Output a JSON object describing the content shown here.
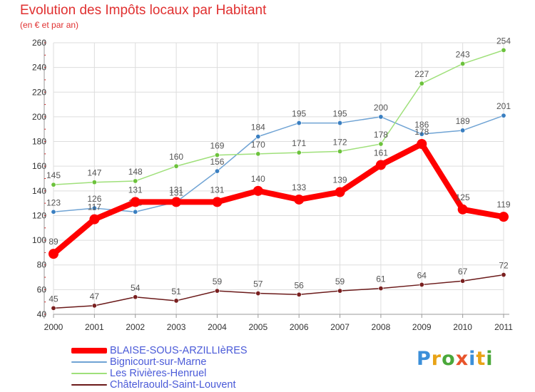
{
  "chart_data": {
    "type": "line",
    "title": "Evolution des Impôts locaux par Habitant",
    "subtitle": "(en € et par an)",
    "x": [
      "2000",
      "2001",
      "2002",
      "2003",
      "2004",
      "2005",
      "2006",
      "2007",
      "2008",
      "2009",
      "2010",
      "2011"
    ],
    "ylim": [
      40,
      260
    ],
    "yticks": [
      40,
      60,
      80,
      100,
      120,
      140,
      160,
      180,
      200,
      220,
      240,
      260
    ],
    "grid": true,
    "legend_position": "bottom-left",
    "series": [
      {
        "name": "Châtelraould-Saint-Louvent",
        "color": "#6b1a1a",
        "point_color": "#7a2020",
        "label_color": "#555555",
        "values": [
          45,
          47,
          54,
          51,
          59,
          57,
          56,
          59,
          61,
          64,
          67,
          72
        ]
      },
      {
        "name": "Bignicourt-sur-Marne",
        "color": "#6fa3d4",
        "point_color": "#3a7fc1",
        "label_color": "#555555",
        "values": [
          123,
          126,
          123,
          131,
          156,
          184,
          195,
          195,
          200,
          186,
          189,
          201
        ]
      },
      {
        "name": "Les Rivières-Henruel",
        "color": "#9fe07a",
        "point_color": "#6cc23c",
        "label_color": "#555555",
        "values": [
          145,
          147,
          148,
          160,
          169,
          170,
          171,
          172,
          178,
          227,
          243,
          254
        ]
      },
      {
        "name": "BLAISE-SOUS-ARZILLIèRES",
        "color": "#ff0000",
        "point_color": "#ff0000",
        "label_color": "#555555",
        "values": [
          89,
          117,
          131,
          131,
          131,
          140,
          133,
          139,
          161,
          178,
          125,
          119
        ]
      }
    ],
    "legend_order": [
      3,
      1,
      2,
      0
    ]
  },
  "brand": {
    "name": "Proxiti"
  },
  "colors": {
    "title": "#e03030",
    "legend_text": "#4a5ad8",
    "axis": "#999999",
    "grid": "#dddddd",
    "tick_mark": "#cc0000"
  }
}
